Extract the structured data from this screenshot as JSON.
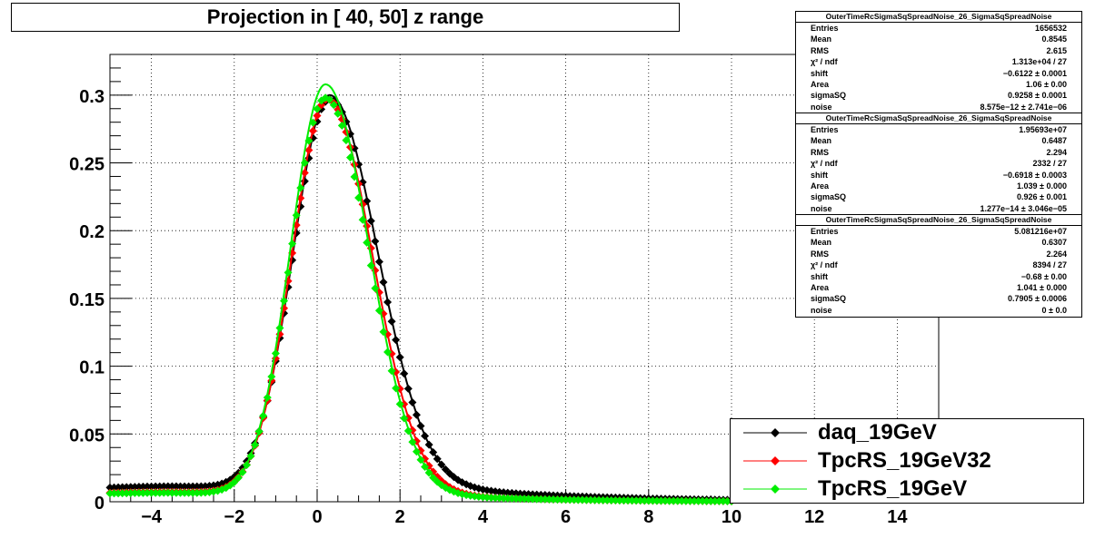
{
  "title": "Projection in [  40,  50] z range",
  "stats_boxes": [
    {
      "header": "OuterTimeRcSigmaSqSpreadNoise_26_SigmaSqSpreadNoise",
      "rows": [
        {
          "label": "Entries",
          "value": "1656532"
        },
        {
          "label": "Mean",
          "value": "0.8545"
        },
        {
          "label": "RMS",
          "value": "2.615"
        },
        {
          "label": "χ² / ndf",
          "value": "1.313e+04 / 27"
        },
        {
          "label": "shift",
          "value": "−0.6122 ± 0.0001"
        },
        {
          "label": "Area",
          "value": "1.06 ± 0.00"
        },
        {
          "label": "sigmaSQ",
          "value": "0.9258 ± 0.0001"
        },
        {
          "label": "noise",
          "value": "8.575e−12 ± 2.741e−06"
        }
      ]
    },
    {
      "header": "OuterTimeRcSigmaSqSpreadNoise_26_SigmaSqSpreadNoise",
      "rows": [
        {
          "label": "Entries",
          "value": "1.95693e+07"
        },
        {
          "label": "Mean",
          "value": "0.6487"
        },
        {
          "label": "RMS",
          "value": "2.294"
        },
        {
          "label": "χ² / ndf",
          "value": "2332 / 27"
        },
        {
          "label": "shift",
          "value": "−0.6918 ± 0.0003"
        },
        {
          "label": "Area",
          "value": "1.039 ± 0.000"
        },
        {
          "label": "sigmaSQ",
          "value": "0.926 ± 0.001"
        },
        {
          "label": "noise",
          "value": "1.277e−14 ± 3.046e−05"
        }
      ]
    },
    {
      "header": "OuterTimeRcSigmaSqSpreadNoise_26_SigmaSqSpreadNoise",
      "rows": [
        {
          "label": "Entries",
          "value": "5.081216e+07"
        },
        {
          "label": "Mean",
          "value": "0.6307"
        },
        {
          "label": "RMS",
          "value": "2.264"
        },
        {
          "label": "χ² / ndf",
          "value": "8394 / 27"
        },
        {
          "label": "shift",
          "value": "−0.68 ± 0.00"
        },
        {
          "label": "Area",
          "value": "1.041 ± 0.000"
        },
        {
          "label": "sigmaSQ",
          "value": "0.7905 ± 0.0006"
        },
        {
          "label": "noise",
          "value": "0 ± 0.0"
        }
      ]
    }
  ],
  "chart_data": {
    "type": "scatter",
    "title": "Projection in [  40,  50] z range",
    "xlabel": "",
    "ylabel": "",
    "xlim": [
      -5,
      15
    ],
    "ylim": [
      0,
      0.33
    ],
    "x_ticks": [
      -4,
      -2,
      0,
      2,
      4,
      6,
      8,
      10,
      12,
      14
    ],
    "x_tick_labels": [
      "−4",
      "−2",
      "0",
      "2",
      "4",
      "6",
      "8",
      "10",
      "12",
      "14"
    ],
    "y_ticks": [
      0,
      0.05,
      0.1,
      0.15,
      0.2,
      0.25,
      0.3
    ],
    "y_tick_labels": [
      "0",
      "0.05",
      "0.1",
      "0.15",
      "0.2",
      "0.25",
      "0.3"
    ],
    "grid": true,
    "legend_position": "bottom-right",
    "series": [
      {
        "name": "daq_19GeV",
        "color": "#000000",
        "peak_x": 0.3,
        "peak_y": 0.297,
        "sigma_left": 0.88,
        "sigma_right": 1.15,
        "tail_amp": 0.022,
        "tail_decay": 3.5,
        "left_base": 0.019,
        "x_start": -5.0,
        "x_end": 10.0,
        "fit_peak_y": 0.3
      },
      {
        "name": "TpcRS_19GeV32",
        "color": "#ff0000",
        "peak_x": 0.25,
        "peak_y": 0.297,
        "sigma_left": 0.86,
        "sigma_right": 1.08,
        "tail_amp": 0.012,
        "tail_decay": 2.8,
        "left_base": 0.012,
        "x_start": -5.0,
        "x_end": 10.0,
        "fit_peak_y": 0.298
      },
      {
        "name": "TpcRS_19GeV",
        "color": "#00ee00",
        "peak_x": 0.2,
        "peak_y": 0.298,
        "sigma_left": 0.84,
        "sigma_right": 1.05,
        "tail_amp": 0.012,
        "tail_decay": 2.8,
        "left_base": 0.011,
        "x_start": -5.0,
        "x_end": 10.0,
        "fit_peak_y": 0.308
      }
    ]
  }
}
